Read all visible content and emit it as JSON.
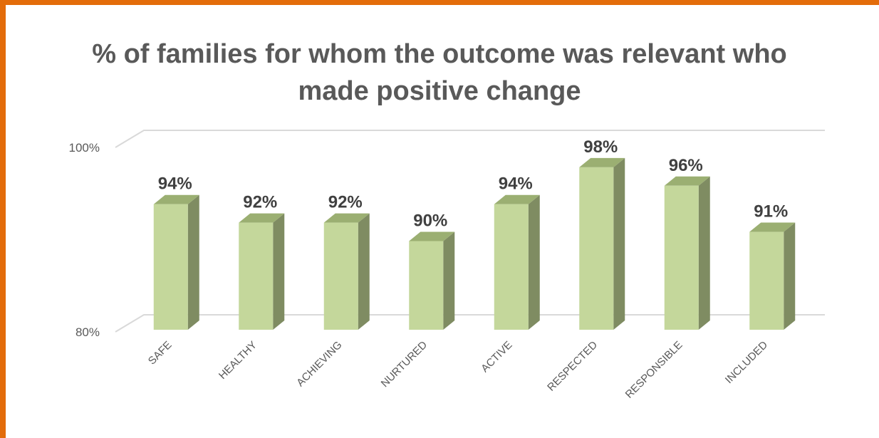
{
  "frame": {
    "border_color": "#E36C0A"
  },
  "chart_data": {
    "type": "bar",
    "title": "% of families for whom the outcome was relevant who made positive change",
    "categories": [
      "SAFE",
      "HEALTHY",
      "ACHIEVING",
      "NURTURED",
      "ACTIVE",
      "RESPECTED",
      "RESPONSIBLE",
      "INCLUDED"
    ],
    "values": [
      94,
      92,
      92,
      90,
      94,
      98,
      96,
      91
    ],
    "data_labels": [
      "94%",
      "92%",
      "92%",
      "90%",
      "94%",
      "98%",
      "96%",
      "91%"
    ],
    "ylim": [
      80,
      100
    ],
    "yticks": [
      80,
      100
    ],
    "ytick_labels": [
      "80%",
      "100%"
    ],
    "grid": true,
    "style": "3d-column",
    "colors": {
      "bar_front": "#C4D79B",
      "bar_side": "#7F8C62",
      "bar_top": "#9BAF72",
      "gridline": "#D9D9D9"
    }
  }
}
